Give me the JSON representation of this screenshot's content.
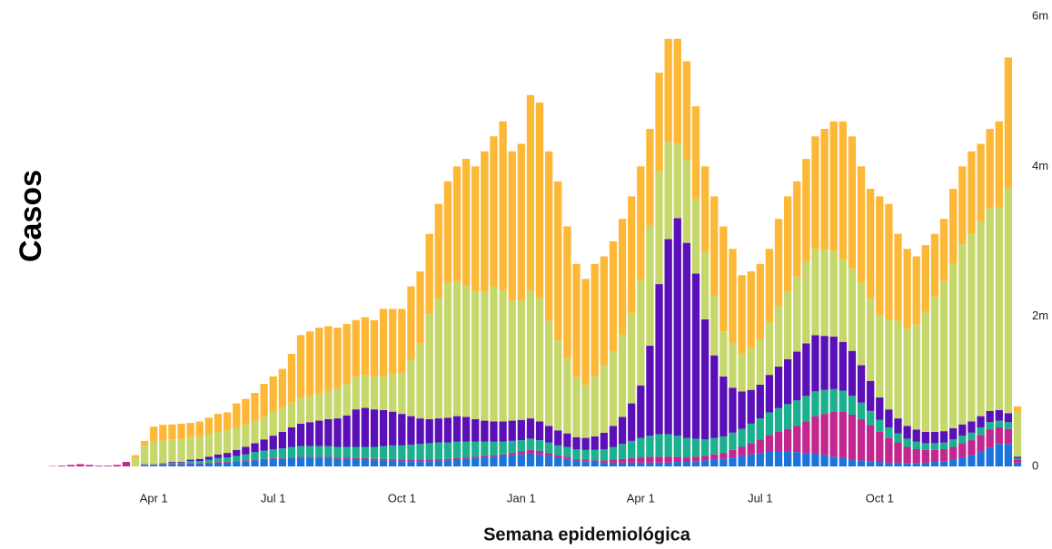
{
  "chart_data": {
    "type": "stacked_bar",
    "ylabel": "Casos",
    "xlabel": "Semana epidemiológica",
    "ylim": [
      0,
      6
    ],
    "yticks": [
      0,
      {
        "value": 2,
        "label": "2m"
      },
      {
        "value": 4,
        "label": "4m"
      },
      {
        "value": 6,
        "label": "6m"
      }
    ],
    "grid": false,
    "categories": [
      null,
      null,
      null,
      null,
      null,
      null,
      null,
      null,
      null,
      null,
      null,
      "Apr 1",
      null,
      null,
      null,
      null,
      null,
      null,
      null,
      null,
      null,
      null,
      null,
      null,
      "Jul 1",
      null,
      null,
      null,
      null,
      null,
      null,
      null,
      null,
      null,
      null,
      null,
      null,
      null,
      "Oct 1",
      null,
      null,
      null,
      null,
      null,
      null,
      null,
      null,
      null,
      null,
      null,
      null,
      "Jan 1",
      null,
      null,
      null,
      null,
      null,
      null,
      null,
      null,
      null,
      null,
      null,
      null,
      "Apr 1",
      null,
      null,
      null,
      null,
      null,
      null,
      null,
      null,
      null,
      null,
      null,
      null,
      "Jul 1",
      null,
      null,
      null,
      null,
      null,
      null,
      null,
      null,
      null,
      null,
      null,
      null,
      "Oct 1",
      null,
      null,
      null,
      null,
      null,
      null,
      null,
      null,
      null,
      null,
      null,
      null,
      null,
      null,
      null
    ],
    "series": [
      {
        "color": "#1b74dc",
        "values": [
          0,
          0,
          0,
          0,
          0,
          0,
          0,
          0,
          0,
          0,
          0.01,
          0.01,
          0.02,
          0.02,
          0.02,
          0.03,
          0.03,
          0.04,
          0.05,
          0.05,
          0.06,
          0.07,
          0.08,
          0.09,
          0.1,
          0.1,
          0.11,
          0.12,
          0.12,
          0.12,
          0.11,
          0.1,
          0.1,
          0.09,
          0.09,
          0.08,
          0.08,
          0.08,
          0.07,
          0.07,
          0.07,
          0.07,
          0.08,
          0.08,
          0.09,
          0.1,
          0.11,
          0.12,
          0.13,
          0.14,
          0.15,
          0.16,
          0.17,
          0.16,
          0.14,
          0.12,
          0.1,
          0.08,
          0.07,
          0.06,
          0.05,
          0.05,
          0.05,
          0.05,
          0.05,
          0.05,
          0.05,
          0.05,
          0.06,
          0.06,
          0.07,
          0.08,
          0.09,
          0.1,
          0.12,
          0.14,
          0.16,
          0.18,
          0.2,
          0.2,
          0.2,
          0.19,
          0.18,
          0.17,
          0.15,
          0.13,
          0.11,
          0.09,
          0.08,
          0.07,
          0.06,
          0.05,
          0.05,
          0.04,
          0.04,
          0.05,
          0.06,
          0.07,
          0.09,
          0.12,
          0.15,
          0.2,
          0.25,
          0.3,
          0.3,
          0.05
        ]
      },
      {
        "color": "#c2268f",
        "values": [
          0.005,
          0.01,
          0.02,
          0.03,
          0.02,
          0.01,
          0.01,
          0.02,
          0.06,
          0,
          0.01,
          0.01,
          0.01,
          0.01,
          0.01,
          0.01,
          0.01,
          0.01,
          0.01,
          0.01,
          0.01,
          0.01,
          0.01,
          0.01,
          0.01,
          0.01,
          0.01,
          0.01,
          0.01,
          0.01,
          0.02,
          0.02,
          0.02,
          0.02,
          0.02,
          0.02,
          0.02,
          0.02,
          0.02,
          0.02,
          0.02,
          0.02,
          0.02,
          0.02,
          0.02,
          0.02,
          0.02,
          0.02,
          0.02,
          0.02,
          0.03,
          0.04,
          0.05,
          0.05,
          0.04,
          0.03,
          0.03,
          0.02,
          0.02,
          0.02,
          0.03,
          0.04,
          0.05,
          0.06,
          0.07,
          0.08,
          0.08,
          0.08,
          0.07,
          0.06,
          0.06,
          0.06,
          0.07,
          0.08,
          0.1,
          0.12,
          0.15,
          0.18,
          0.22,
          0.26,
          0.3,
          0.35,
          0.42,
          0.5,
          0.55,
          0.6,
          0.62,
          0.6,
          0.55,
          0.48,
          0.4,
          0.33,
          0.27,
          0.22,
          0.19,
          0.17,
          0.16,
          0.16,
          0.17,
          0.19,
          0.2,
          0.22,
          0.24,
          0.22,
          0.2,
          0.04
        ]
      },
      {
        "color": "#1bb08e",
        "values": [
          0,
          0,
          0,
          0,
          0,
          0,
          0,
          0,
          0,
          0,
          0.01,
          0.01,
          0.01,
          0.02,
          0.02,
          0.03,
          0.03,
          0.04,
          0.05,
          0.06,
          0.07,
          0.08,
          0.1,
          0.11,
          0.12,
          0.13,
          0.14,
          0.14,
          0.14,
          0.14,
          0.14,
          0.14,
          0.14,
          0.15,
          0.15,
          0.16,
          0.17,
          0.18,
          0.19,
          0.2,
          0.21,
          0.22,
          0.22,
          0.22,
          0.22,
          0.21,
          0.2,
          0.19,
          0.18,
          0.17,
          0.16,
          0.15,
          0.15,
          0.14,
          0.14,
          0.13,
          0.13,
          0.13,
          0.13,
          0.14,
          0.15,
          0.17,
          0.2,
          0.23,
          0.26,
          0.28,
          0.3,
          0.3,
          0.28,
          0.26,
          0.24,
          0.22,
          0.22,
          0.22,
          0.23,
          0.24,
          0.26,
          0.28,
          0.3,
          0.32,
          0.33,
          0.34,
          0.34,
          0.33,
          0.32,
          0.3,
          0.28,
          0.25,
          0.22,
          0.19,
          0.16,
          0.14,
          0.12,
          0.11,
          0.1,
          0.09,
          0.09,
          0.09,
          0.1,
          0.1,
          0.1,
          0.1,
          0.1,
          0.09,
          0.09,
          0.02
        ]
      },
      {
        "color": "#5a10b6",
        "values": [
          0,
          0,
          0,
          0,
          0,
          0,
          0,
          0,
          0,
          0,
          0,
          0,
          0.005,
          0.01,
          0.01,
          0.02,
          0.03,
          0.04,
          0.05,
          0.06,
          0.08,
          0.1,
          0.12,
          0.15,
          0.18,
          0.22,
          0.26,
          0.3,
          0.32,
          0.34,
          0.36,
          0.38,
          0.42,
          0.5,
          0.52,
          0.5,
          0.48,
          0.45,
          0.42,
          0.38,
          0.34,
          0.32,
          0.32,
          0.33,
          0.34,
          0.33,
          0.3,
          0.28,
          0.27,
          0.27,
          0.27,
          0.27,
          0.27,
          0.25,
          0.22,
          0.2,
          0.18,
          0.16,
          0.16,
          0.18,
          0.22,
          0.28,
          0.36,
          0.5,
          0.7,
          1.2,
          2.0,
          2.6,
          2.9,
          2.6,
          2.2,
          1.6,
          1.1,
          0.8,
          0.6,
          0.5,
          0.45,
          0.45,
          0.5,
          0.55,
          0.6,
          0.65,
          0.7,
          0.75,
          0.72,
          0.7,
          0.65,
          0.6,
          0.5,
          0.4,
          0.3,
          0.24,
          0.2,
          0.17,
          0.16,
          0.15,
          0.15,
          0.15,
          0.15,
          0.15,
          0.15,
          0.15,
          0.15,
          0.14,
          0.12,
          0.02
        ]
      },
      {
        "color": "#c6d86c",
        "values": [
          0,
          0,
          0,
          0,
          0,
          0,
          0,
          0,
          0,
          0.12,
          0.25,
          0.3,
          0.3,
          0.3,
          0.3,
          0.3,
          0.3,
          0.3,
          0.3,
          0.3,
          0.3,
          0.3,
          0.3,
          0.3,
          0.32,
          0.33,
          0.33,
          0.34,
          0.35,
          0.36,
          0.38,
          0.4,
          0.42,
          0.43,
          0.44,
          0.44,
          0.45,
          0.5,
          0.55,
          0.75,
          1.0,
          1.4,
          1.6,
          1.8,
          1.8,
          1.75,
          1.7,
          1.72,
          1.8,
          1.75,
          1.6,
          1.6,
          1.7,
          1.65,
          1.4,
          1.2,
          1.0,
          0.8,
          0.7,
          0.8,
          0.9,
          1.0,
          1.1,
          1.2,
          1.4,
          1.6,
          1.5,
          1.3,
          1.0,
          1.1,
          1.0,
          0.9,
          0.8,
          0.6,
          0.6,
          0.5,
          0.55,
          0.6,
          0.7,
          0.8,
          0.9,
          1.0,
          1.1,
          1.15,
          1.15,
          1.15,
          1.1,
          1.1,
          1.1,
          1.1,
          1.1,
          1.2,
          1.3,
          1.3,
          1.4,
          1.6,
          1.8,
          2.0,
          2.2,
          2.4,
          2.5,
          2.6,
          2.7,
          2.7,
          3.0,
          0.6
        ]
      },
      {
        "color": "#fcb836",
        "values": [
          0,
          0,
          0,
          0,
          0,
          0,
          0,
          0,
          0,
          0.03,
          0.06,
          0.2,
          0.21,
          0.2,
          0.21,
          0.19,
          0.2,
          0.22,
          0.24,
          0.24,
          0.32,
          0.34,
          0.37,
          0.44,
          0.47,
          0.51,
          0.65,
          0.84,
          0.86,
          0.88,
          0.86,
          0.81,
          0.8,
          0.76,
          0.77,
          0.75,
          0.9,
          0.87,
          0.85,
          0.98,
          0.96,
          1.07,
          1.26,
          1.35,
          1.53,
          1.69,
          1.67,
          1.87,
          2.0,
          2.25,
          1.99,
          2.08,
          2.61,
          2.6,
          2.26,
          2.12,
          1.76,
          1.51,
          1.42,
          1.5,
          1.45,
          1.46,
          1.54,
          1.56,
          1.52,
          1.29,
          1.32,
          1.37,
          1.39,
          1.32,
          1.23,
          1.14,
          1.32,
          1.4,
          1.25,
          1.05,
          1.03,
          1.01,
          0.98,
          1.17,
          1.27,
          1.27,
          1.36,
          1.5,
          1.61,
          1.72,
          1.84,
          1.76,
          1.55,
          1.46,
          1.58,
          1.54,
          1.16,
          1.06,
          0.91,
          0.89,
          0.84,
          0.83,
          0.99,
          1.04,
          1.1,
          1.03,
          1.06,
          1.15,
          1.74,
          0.07
        ]
      }
    ]
  }
}
